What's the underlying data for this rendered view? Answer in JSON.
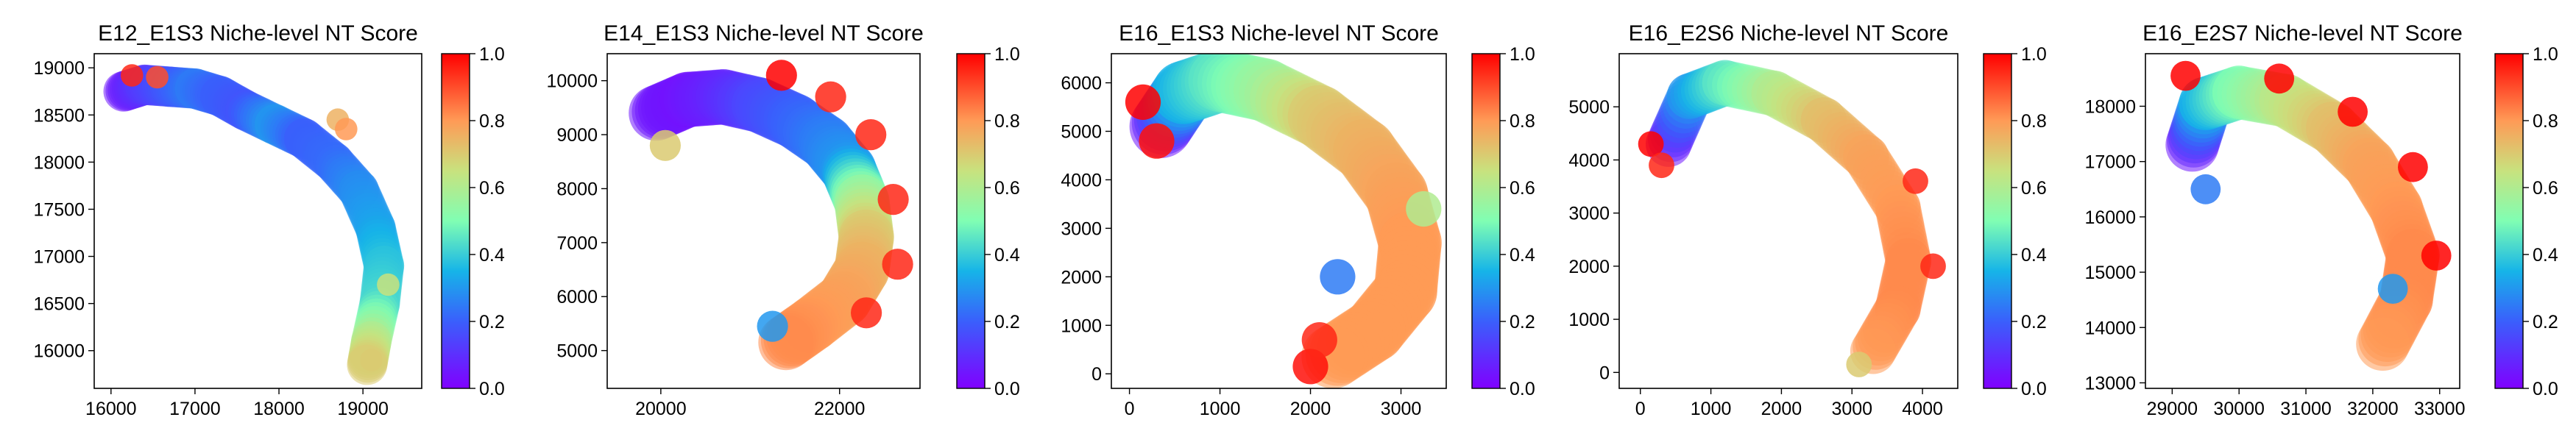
{
  "chart_data": [
    {
      "type": "scatter",
      "title": "E12_E1S3 Niche-level NT Score",
      "xlabel": "",
      "ylabel": "",
      "xlim": [
        15800,
        19700
      ],
      "ylim": [
        15600,
        19150
      ],
      "xticks": [
        16000,
        17000,
        18000,
        19000
      ],
      "yticks": [
        16000,
        16500,
        17000,
        17500,
        18000,
        18500,
        19000
      ],
      "colorbar": {
        "min": 0.0,
        "max": 1.0,
        "ticks": [
          "0.0",
          "0.2",
          "0.4",
          "0.6",
          "0.8",
          "1.0"
        ],
        "colormap": "rainbow"
      },
      "tissue": [
        {
          "x": 16150,
          "y": 18750,
          "v": 0.05
        },
        {
          "x": 16400,
          "y": 18820,
          "v": 0.12
        },
        {
          "x": 16700,
          "y": 18800,
          "v": 0.18
        },
        {
          "x": 17000,
          "y": 18780,
          "v": 0.25
        },
        {
          "x": 17300,
          "y": 18700,
          "v": 0.2
        },
        {
          "x": 17600,
          "y": 18550,
          "v": 0.18
        },
        {
          "x": 17950,
          "y": 18400,
          "v": 0.3
        },
        {
          "x": 18300,
          "y": 18250,
          "v": 0.2
        },
        {
          "x": 18650,
          "y": 18000,
          "v": 0.22
        },
        {
          "x": 18950,
          "y": 17700,
          "v": 0.28
        },
        {
          "x": 19150,
          "y": 17300,
          "v": 0.32
        },
        {
          "x": 19250,
          "y": 16900,
          "v": 0.38
        },
        {
          "x": 19200,
          "y": 16500,
          "v": 0.42
        },
        {
          "x": 19100,
          "y": 16100,
          "v": 0.6
        },
        {
          "x": 19050,
          "y": 15850,
          "v": 0.7
        }
      ],
      "tissue_width": 480,
      "edge_points": [
        {
          "x": 16250,
          "y": 18920,
          "v": 0.95
        },
        {
          "x": 16550,
          "y": 18900,
          "v": 0.9
        },
        {
          "x": 18700,
          "y": 18450,
          "v": 0.75
        },
        {
          "x": 18800,
          "y": 18350,
          "v": 0.8
        },
        {
          "x": 19300,
          "y": 16700,
          "v": 0.65
        },
        {
          "x": 19100,
          "y": 15900,
          "v": 0.7
        }
      ]
    },
    {
      "type": "scatter",
      "title": "E14_E1S3 Niche-level NT Score",
      "xlabel": "",
      "ylabel": "",
      "xlim": [
        19400,
        22900
      ],
      "ylim": [
        4300,
        10500
      ],
      "xticks": [
        20000,
        22000
      ],
      "yticks": [
        5000,
        6000,
        7000,
        8000,
        9000,
        10000
      ],
      "colorbar": {
        "min": 0.0,
        "max": 1.0,
        "ticks": [
          "0.0",
          "0.2",
          "0.4",
          "0.6",
          "0.8",
          "1.0"
        ],
        "colormap": "rainbow"
      },
      "tissue": [
        {
          "x": 19950,
          "y": 9400,
          "v": 0.05
        },
        {
          "x": 20300,
          "y": 9650,
          "v": 0.04
        },
        {
          "x": 20700,
          "y": 9700,
          "v": 0.08
        },
        {
          "x": 21100,
          "y": 9550,
          "v": 0.15
        },
        {
          "x": 21500,
          "y": 9250,
          "v": 0.2
        },
        {
          "x": 21850,
          "y": 8850,
          "v": 0.25
        },
        {
          "x": 22100,
          "y": 8350,
          "v": 0.3
        },
        {
          "x": 22250,
          "y": 7750,
          "v": 0.55
        },
        {
          "x": 22300,
          "y": 7100,
          "v": 0.7
        },
        {
          "x": 22250,
          "y": 6500,
          "v": 0.75
        },
        {
          "x": 22050,
          "y": 5950,
          "v": 0.78
        },
        {
          "x": 21700,
          "y": 5500,
          "v": 0.8
        },
        {
          "x": 21400,
          "y": 5150,
          "v": 0.82
        }
      ],
      "tissue_width": 620,
      "edge_points": [
        {
          "x": 21350,
          "y": 10100,
          "v": 1.0
        },
        {
          "x": 21900,
          "y": 9700,
          "v": 0.95
        },
        {
          "x": 22350,
          "y": 9000,
          "v": 0.95
        },
        {
          "x": 22600,
          "y": 7800,
          "v": 0.95
        },
        {
          "x": 22650,
          "y": 6600,
          "v": 0.95
        },
        {
          "x": 22300,
          "y": 5700,
          "v": 0.95
        },
        {
          "x": 20050,
          "y": 8800,
          "v": 0.7
        },
        {
          "x": 21250,
          "y": 5450,
          "v": 0.3
        }
      ]
    },
    {
      "type": "scatter",
      "title": "E16_E1S3 Niche-level NT Score",
      "xlabel": "",
      "ylabel": "",
      "xlim": [
        -200,
        3500
      ],
      "ylim": [
        -300,
        6600
      ],
      "xticks": [
        0,
        1000,
        2000,
        3000
      ],
      "yticks": [
        0,
        1000,
        2000,
        3000,
        4000,
        5000,
        6000
      ],
      "colorbar": {
        "min": 0.0,
        "max": 1.0,
        "ticks": [
          "0.0",
          "0.2",
          "0.4",
          "0.6",
          "0.8",
          "1.0"
        ],
        "colormap": "rainbow"
      },
      "tissue": [
        {
          "x": 350,
          "y": 5100,
          "v": 0.05
        },
        {
          "x": 600,
          "y": 5800,
          "v": 0.35
        },
        {
          "x": 1000,
          "y": 6050,
          "v": 0.45
        },
        {
          "x": 1500,
          "y": 5850,
          "v": 0.55
        },
        {
          "x": 2100,
          "y": 5300,
          "v": 0.7
        },
        {
          "x": 2600,
          "y": 4600,
          "v": 0.75
        },
        {
          "x": 2950,
          "y": 3700,
          "v": 0.78
        },
        {
          "x": 3100,
          "y": 2700,
          "v": 0.8
        },
        {
          "x": 3050,
          "y": 1700,
          "v": 0.8
        },
        {
          "x": 2700,
          "y": 900,
          "v": 0.8
        },
        {
          "x": 2250,
          "y": 350,
          "v": 0.8
        }
      ],
      "tissue_width": 700,
      "edge_points": [
        {
          "x": 150,
          "y": 5600,
          "v": 1.0
        },
        {
          "x": 300,
          "y": 4800,
          "v": 0.98
        },
        {
          "x": 2000,
          "y": 150,
          "v": 0.98
        },
        {
          "x": 2100,
          "y": 700,
          "v": 0.95
        },
        {
          "x": 3250,
          "y": 3400,
          "v": 0.6
        },
        {
          "x": 2300,
          "y": 2000,
          "v": 0.25
        }
      ]
    },
    {
      "type": "scatter",
      "title": "E16_E2S6 Niche-level NT Score",
      "xlabel": "",
      "ylabel": "",
      "xlim": [
        -300,
        4500
      ],
      "ylim": [
        -300,
        6000
      ],
      "xticks": [
        0,
        1000,
        2000,
        3000,
        4000
      ],
      "yticks": [
        0,
        1000,
        2000,
        3000,
        4000,
        5000
      ],
      "colorbar": {
        "min": 0.0,
        "max": 1.0,
        "ticks": [
          "0.0",
          "0.2",
          "0.4",
          "0.6",
          "0.8",
          "1.0"
        ],
        "colormap": "rainbow"
      },
      "tissue": [
        {
          "x": 400,
          "y": 4300,
          "v": 0.05
        },
        {
          "x": 700,
          "y": 5200,
          "v": 0.3
        },
        {
          "x": 1200,
          "y": 5450,
          "v": 0.45
        },
        {
          "x": 1900,
          "y": 5250,
          "v": 0.6
        },
        {
          "x": 2600,
          "y": 4750,
          "v": 0.72
        },
        {
          "x": 3200,
          "y": 4050,
          "v": 0.78
        },
        {
          "x": 3650,
          "y": 3100,
          "v": 0.8
        },
        {
          "x": 3800,
          "y": 2100,
          "v": 0.82
        },
        {
          "x": 3650,
          "y": 1200,
          "v": 0.82
        },
        {
          "x": 3300,
          "y": 400,
          "v": 0.8
        }
      ],
      "tissue_width": 650,
      "edge_points": [
        {
          "x": 150,
          "y": 4300,
          "v": 1.0
        },
        {
          "x": 300,
          "y": 3900,
          "v": 0.95
        },
        {
          "x": 3100,
          "y": 150,
          "v": 0.7
        },
        {
          "x": 3900,
          "y": 3600,
          "v": 0.95
        },
        {
          "x": 4150,
          "y": 2000,
          "v": 0.95
        }
      ]
    },
    {
      "type": "scatter",
      "title": "E16_E2S7 Niche-level NT Score",
      "xlabel": "",
      "ylabel": "",
      "xlim": [
        28600,
        33300
      ],
      "ylim": [
        12900,
        18950
      ],
      "xticks": [
        29000,
        30000,
        31000,
        32000,
        33000
      ],
      "yticks": [
        13000,
        14000,
        15000,
        16000,
        17000,
        18000
      ],
      "colorbar": {
        "min": 0.0,
        "max": 1.0,
        "ticks": [
          "0.0",
          "0.2",
          "0.4",
          "0.6",
          "0.8",
          "1.0"
        ],
        "colormap": "rainbow"
      },
      "tissue": [
        {
          "x": 29300,
          "y": 17300,
          "v": 0.05
        },
        {
          "x": 29500,
          "y": 18050,
          "v": 0.35
        },
        {
          "x": 30000,
          "y": 18250,
          "v": 0.5
        },
        {
          "x": 30700,
          "y": 18100,
          "v": 0.62
        },
        {
          "x": 31400,
          "y": 17600,
          "v": 0.72
        },
        {
          "x": 31950,
          "y": 16950,
          "v": 0.78
        },
        {
          "x": 32350,
          "y": 16150,
          "v": 0.8
        },
        {
          "x": 32600,
          "y": 15300,
          "v": 0.82
        },
        {
          "x": 32500,
          "y": 14500,
          "v": 0.82
        },
        {
          "x": 32150,
          "y": 13700,
          "v": 0.8
        }
      ],
      "tissue_width": 800,
      "edge_points": [
        {
          "x": 29200,
          "y": 18550,
          "v": 1.0
        },
        {
          "x": 30600,
          "y": 18500,
          "v": 1.0
        },
        {
          "x": 31700,
          "y": 17900,
          "v": 1.0
        },
        {
          "x": 32600,
          "y": 16900,
          "v": 1.0
        },
        {
          "x": 32950,
          "y": 15300,
          "v": 1.0
        },
        {
          "x": 32300,
          "y": 14700,
          "v": 0.3
        },
        {
          "x": 29500,
          "y": 16500,
          "v": 0.25
        }
      ]
    }
  ]
}
